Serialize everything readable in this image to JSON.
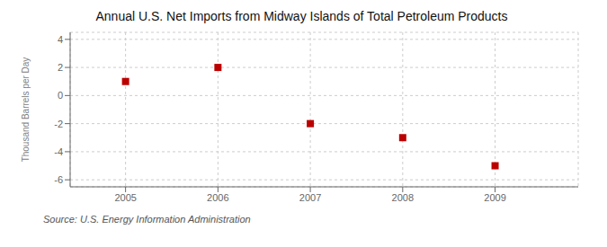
{
  "chart_data": {
    "type": "scatter",
    "title": "Annual U.S. Net Imports from Midway Islands of Total Petroleum Products",
    "ylabel": "Thousand Barrels per Day",
    "source": "Source: U.S. Energy Information Administration",
    "x": [
      2005,
      2006,
      2007,
      2008,
      2009
    ],
    "values": [
      1,
      2,
      -2,
      -3,
      -5
    ],
    "xlim": [
      2004.4,
      2009.9
    ],
    "ylim": [
      -6.5,
      4.5
    ],
    "xticks": [
      2005,
      2006,
      2007,
      2008,
      2009
    ],
    "yticks": [
      -6,
      -4,
      -2,
      0,
      2,
      4
    ],
    "color": "#bb0000",
    "marker": "square",
    "grid": true
  }
}
